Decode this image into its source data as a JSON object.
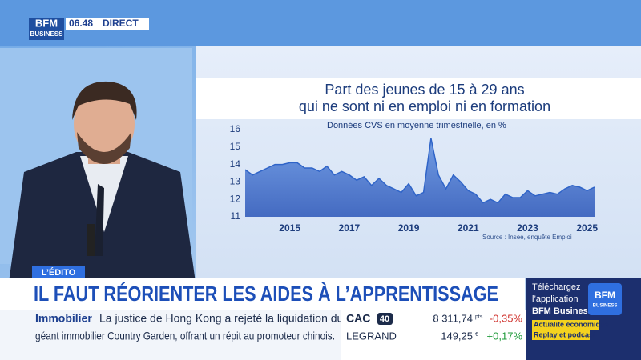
{
  "broadcast": {
    "channel": [
      "BFM",
      "BUSINESS"
    ],
    "time": "06.48",
    "status": "DIRECT"
  },
  "chart_data": {
    "type": "area",
    "title": [
      "Part des jeunes de 15 à 29 ans",
      "qui ne sont ni en emploi ni en formation"
    ],
    "subtitle": "Données CVS en moyenne trimestrielle, en %",
    "source": "Source : Insee, enquête Emploi",
    "categories": [
      null,
      null,
      null,
      null,
      null,
      null,
      "2015",
      null,
      null,
      null,
      null,
      null,
      null,
      null,
      "2017",
      null,
      null,
      null,
      null,
      null,
      null,
      null,
      "2019",
      null,
      null,
      null,
      null,
      null,
      null,
      null,
      "2021",
      null,
      null,
      null,
      null,
      null,
      null,
      null,
      "2023",
      null,
      null,
      null,
      null,
      null,
      null,
      null,
      "2025",
      null
    ],
    "values": [
      13.7,
      13.4,
      13.6,
      13.8,
      14.0,
      14.0,
      14.1,
      14.1,
      13.8,
      13.8,
      13.6,
      13.9,
      13.4,
      13.6,
      13.4,
      13.1,
      13.3,
      12.8,
      13.2,
      12.8,
      12.6,
      12.4,
      12.9,
      12.2,
      12.4,
      15.5,
      13.4,
      12.6,
      13.4,
      13.0,
      12.5,
      12.3,
      11.8,
      12.0,
      11.8,
      12.3,
      12.1,
      12.1,
      12.5,
      12.2,
      12.3,
      12.4,
      12.3,
      12.6,
      12.8,
      12.7,
      12.5,
      12.7
    ],
    "color": "#2f64c8",
    "ylim": [
      11,
      16
    ],
    "yticks": [
      11,
      12,
      13,
      14,
      15,
      16
    ],
    "grid": false
  },
  "banner": {
    "tag": "L’ÉDITO",
    "headline": "IL FAUT RÉORIENTER LES AIDES À L’APPRENTISSAGE"
  },
  "ticker": {
    "category": "Immobilier",
    "lines": [
      "La justice de Hong Kong a rejeté la liquidation du",
      "géant immobilier Country Garden, offrant un répit au promoteur chinois."
    ]
  },
  "market": {
    "rows": [
      {
        "name": "CAC",
        "index_tag": "40",
        "value": "8 311,74",
        "unit": "pts",
        "change": "-0,35%"
      },
      {
        "name": "LEGRAND",
        "value": "149,25",
        "unit": "€",
        "change": "+0,17%"
      }
    ]
  },
  "promo": {
    "lines": [
      "Téléchargez",
      "l’application",
      "BFM Business"
    ],
    "logo": [
      "BFM",
      "BUSINESS"
    ],
    "tags": [
      "Actualité économique",
      "Replay et podcast"
    ]
  }
}
